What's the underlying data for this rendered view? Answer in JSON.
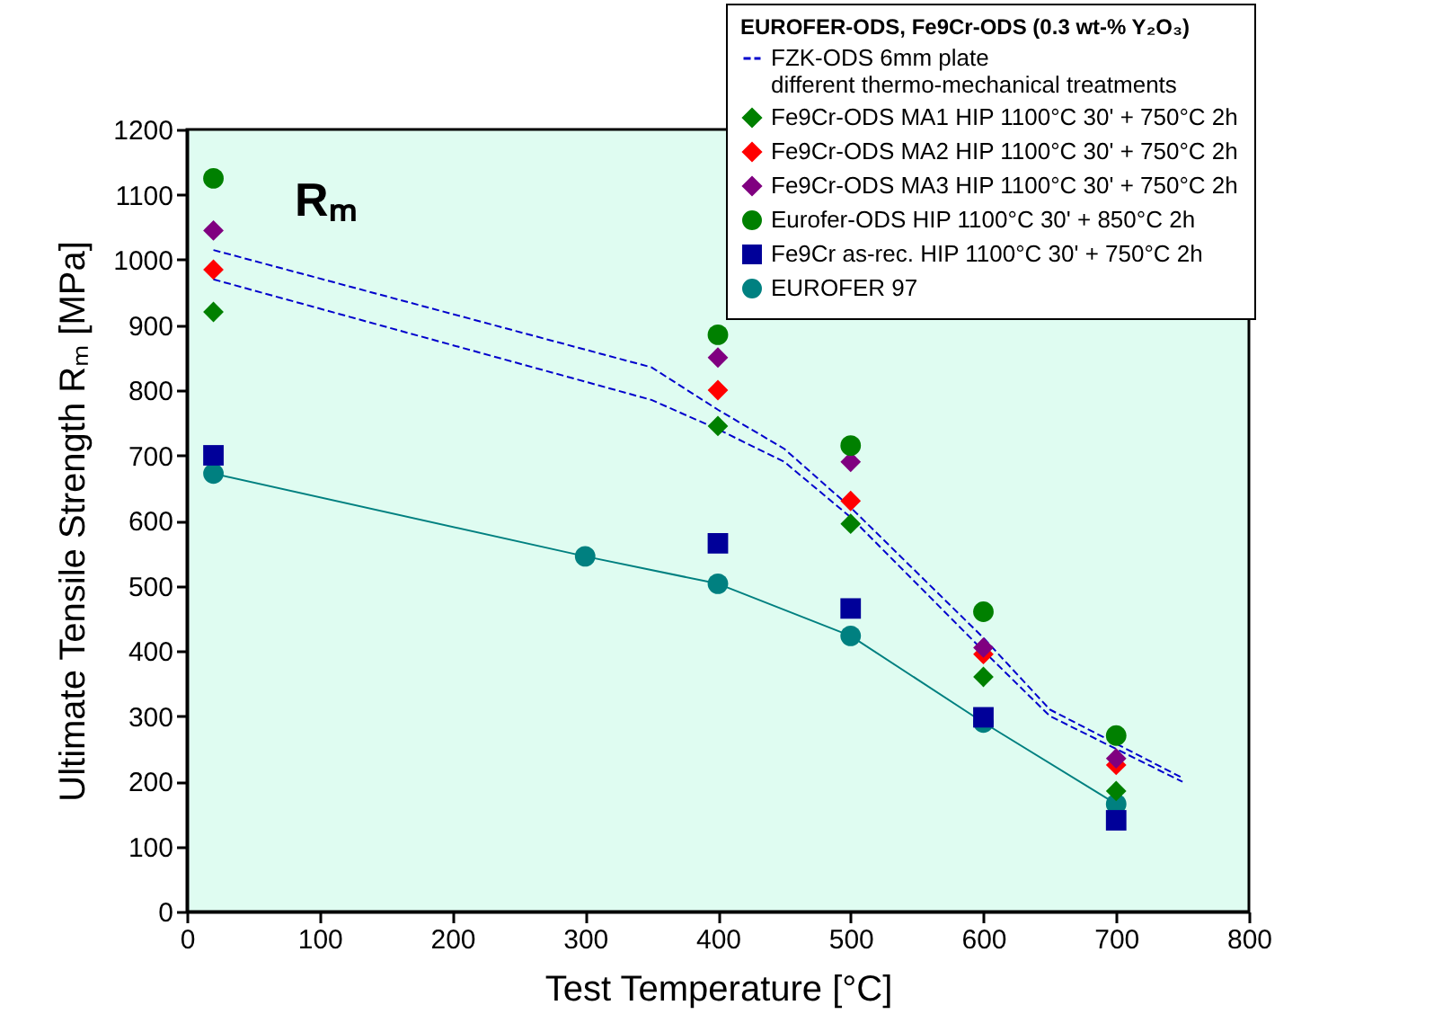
{
  "chart_data": {
    "type": "scatter",
    "xlabel": "Test Temperature [°C]",
    "ylabel": "Ultimate Tensile Strength Rₘ [MPa]",
    "legend_title": "EUROFER-ODS, Fe9Cr-ODS (0.3 wt-% Y₂O₃)",
    "annotations": [
      "Rₘ"
    ],
    "xlim": [
      0,
      800
    ],
    "ylim": [
      0,
      1200
    ],
    "xticks": [
      0,
      100,
      200,
      300,
      400,
      500,
      600,
      700,
      800
    ],
    "yticks": [
      0,
      100,
      200,
      300,
      400,
      500,
      600,
      700,
      800,
      900,
      1000,
      1100,
      1200
    ],
    "grid": false,
    "legend": "top right",
    "x": [
      20,
      400,
      500,
      600,
      700
    ],
    "series": [
      {
        "name": "FZK-ODS 6mm plate\ndifferent thermo-mechanical treatments",
        "type": "line",
        "color": "#0000cc",
        "line_style": "dashed",
        "marker": "none",
        "x": [
          20,
          350,
          400,
          450,
          500,
          600,
          650,
          750
        ],
        "values": [
          1015,
          835,
          770,
          710,
          620,
          420,
          310,
          205
        ]
      },
      {
        "type": "line",
        "color": "#0000cc",
        "line_style": "dashed",
        "marker": "none",
        "x": [
          20,
          350,
          400,
          450,
          500,
          600,
          650,
          750
        ],
        "values": [
          970,
          785,
          740,
          690,
          605,
          400,
          300,
          199
        ]
      },
      {
        "name": "Fe9Cr-ODS MA1 HIP 1100°C 30' + 750°C 2h",
        "color": "#008000",
        "marker": "diamond",
        "values": [
          920,
          745,
          595,
          360,
          185
        ]
      },
      {
        "name": "Fe9Cr-ODS MA2 HIP 1100°C 30' + 750°C 2h",
        "color": "#ff0000",
        "marker": "diamond",
        "values": [
          985,
          800,
          630,
          395,
          225
        ]
      },
      {
        "name": "Fe9Cr-ODS MA3 HIP 1100°C 30' + 750°C 2h",
        "color": "#800080",
        "marker": "diamond",
        "values": [
          1045,
          850,
          690,
          405,
          235
        ]
      },
      {
        "name": "Eurofer-ODS HIP 1100°C 30' + 850°C 2h",
        "color": "#008000",
        "marker": "circle",
        "values": [
          1125,
          885,
          715,
          460,
          270
        ]
      },
      {
        "name": "Fe9Cr as-rec. HIP 1100°C 30' + 750°C 2h",
        "color": "#000099",
        "marker": "square",
        "values": [
          700,
          565,
          465,
          298,
          140
        ]
      },
      {
        "name": "EUROFER 97",
        "type": "line",
        "color": "#008080",
        "line_style": "solid",
        "marker": "circle",
        "x": [
          20,
          300,
          400,
          500,
          600,
          700
        ],
        "values": [
          672,
          545,
          503,
          423,
          290,
          165
        ]
      }
    ]
  }
}
